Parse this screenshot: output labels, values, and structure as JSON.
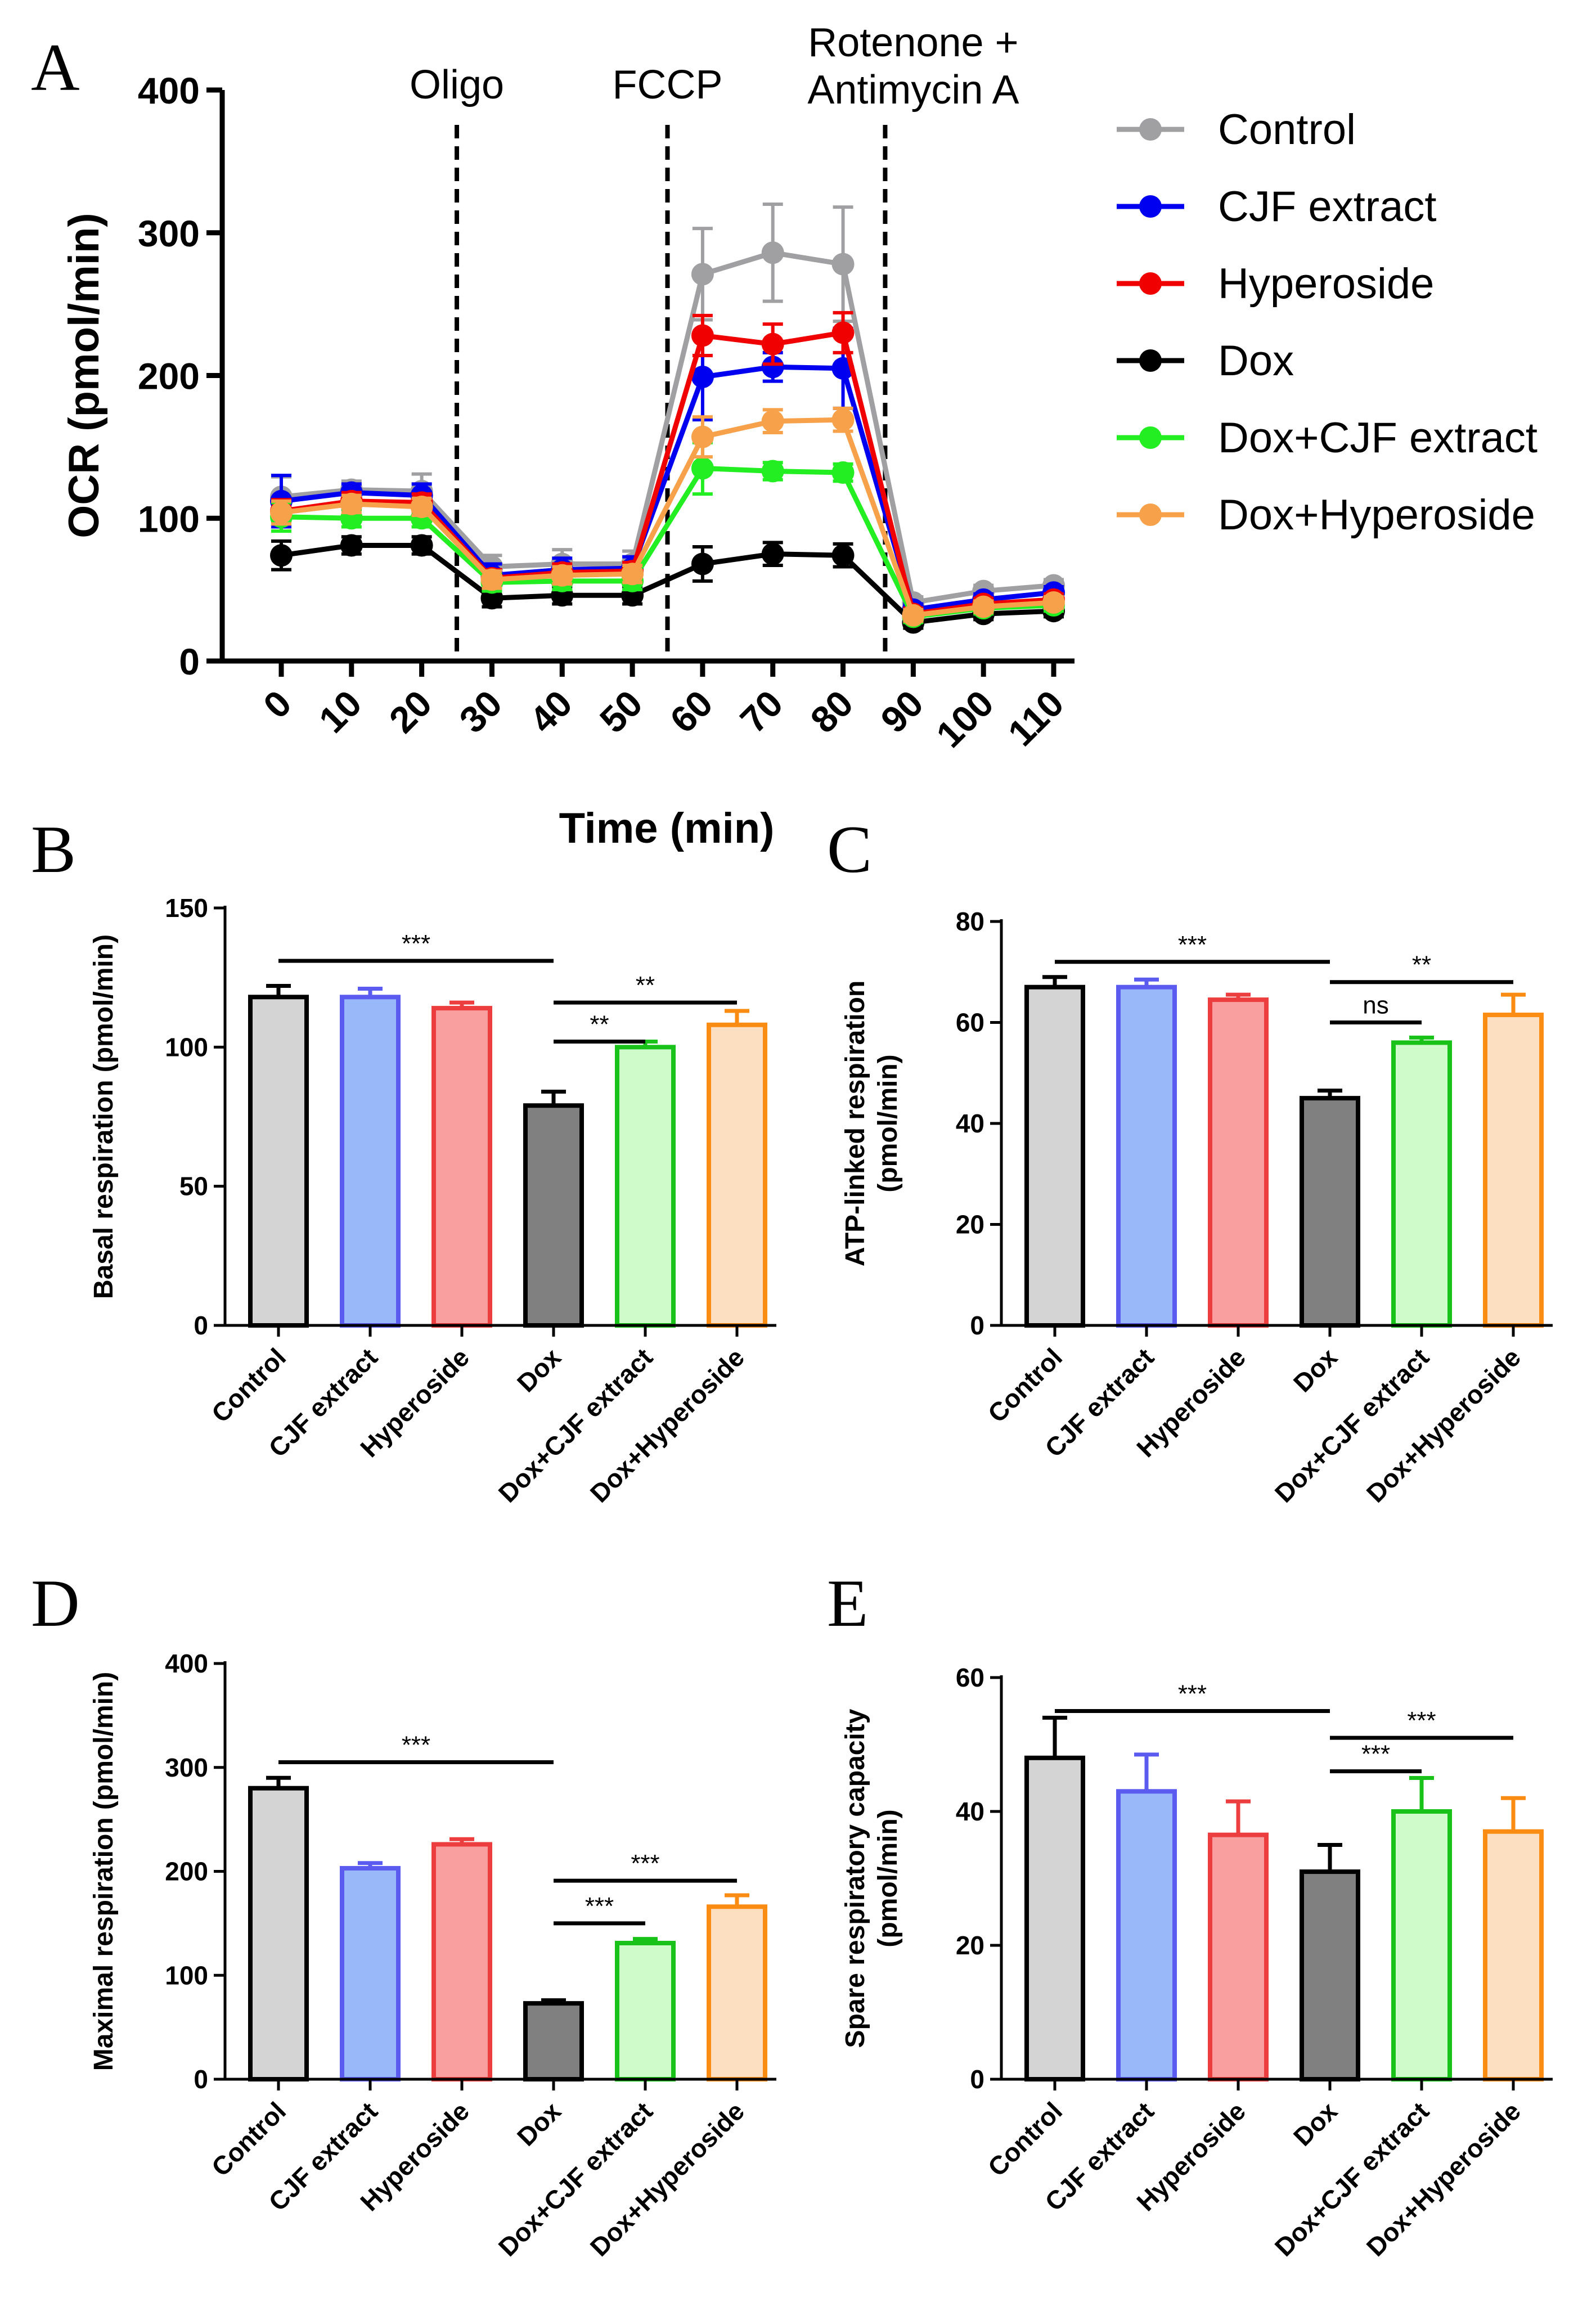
{
  "figure": {
    "panels": [
      {
        "letter": "A"
      },
      {
        "letter": "B"
      },
      {
        "letter": "C"
      },
      {
        "letter": "D"
      },
      {
        "letter": "E"
      }
    ]
  },
  "chart_data": [
    {
      "id": "A",
      "type": "line",
      "title": "",
      "xlabel": "Time (min)",
      "ylabel": "OCR (pmol/min)",
      "ylim": [
        0,
        400
      ],
      "yticks": [
        0,
        100,
        200,
        300,
        400
      ],
      "x": [
        0,
        10,
        20,
        30,
        40,
        50,
        60,
        70,
        80,
        90,
        100,
        110
      ],
      "injections": [
        {
          "label": "Oligo",
          "x": 25
        },
        {
          "label": "FCCP",
          "x": 55
        },
        {
          "label": "Rotenone +\nAntimycin A",
          "x": 86
        }
      ],
      "series": [
        {
          "name": "Control",
          "color": "#A0A0A2",
          "values": [
            115,
            120,
            119,
            66,
            68,
            68,
            271,
            286,
            278,
            41,
            49,
            53
          ],
          "errors": [
            14,
            6,
            12,
            8,
            10,
            9,
            32,
            34,
            40,
            4,
            4,
            4
          ]
        },
        {
          "name": "CJF extract",
          "color": "#0000F0",
          "values": [
            112,
            118,
            116,
            60,
            64,
            65,
            199,
            206,
            205,
            36,
            43,
            48
          ],
          "errors": [
            18,
            6,
            8,
            8,
            8,
            8,
            30,
            10,
            28,
            4,
            4,
            4
          ]
        },
        {
          "name": "Hyperoside",
          "color": "#F00000",
          "values": [
            105,
            112,
            111,
            58,
            62,
            63,
            228,
            222,
            230,
            33,
            40,
            43
          ],
          "errors": [
            8,
            6,
            6,
            6,
            6,
            6,
            14,
            14,
            14,
            4,
            4,
            4
          ]
        },
        {
          "name": "Dox",
          "color": "#000000",
          "values": [
            74,
            81,
            81,
            44,
            46,
            46,
            68,
            75,
            74,
            27,
            33,
            35
          ],
          "errors": [
            10,
            6,
            6,
            6,
            6,
            6,
            12,
            8,
            8,
            4,
            4,
            4
          ]
        },
        {
          "name": "Dox+CJF extract",
          "color": "#22EE22",
          "values": [
            101,
            100,
            100,
            55,
            56,
            56,
            135,
            133,
            132,
            31,
            37,
            39
          ],
          "errors": [
            10,
            6,
            6,
            6,
            6,
            6,
            18,
            6,
            6,
            4,
            4,
            4
          ]
        },
        {
          "name": "Dox+Hyperoside",
          "color": "#F7A24B",
          "values": [
            104,
            110,
            108,
            57,
            60,
            61,
            157,
            168,
            169,
            32,
            38,
            41
          ],
          "errors": [
            8,
            6,
            6,
            6,
            6,
            6,
            14,
            8,
            8,
            4,
            4,
            4
          ]
        }
      ],
      "legend": "right"
    },
    {
      "id": "B",
      "type": "bar",
      "ylabel": "Basal respiration (pmol/min)",
      "ylim": [
        0,
        150
      ],
      "yticks": [
        0,
        50,
        100,
        150
      ],
      "categories": [
        "Control",
        "CJF extract",
        "Hyperoside",
        "Dox",
        "Dox+CJF extract",
        "Dox+Hyperoside"
      ],
      "values": [
        118,
        118,
        114,
        79,
        100,
        108
      ],
      "errors": [
        4,
        3,
        2,
        5,
        2,
        5
      ],
      "significance": [
        {
          "from": 0,
          "to": 3,
          "label": "***",
          "y": 131
        },
        {
          "from": 3,
          "to": 5,
          "label": "**",
          "y": 116
        },
        {
          "from": 3,
          "to": 4,
          "label": "**",
          "y": 102
        }
      ]
    },
    {
      "id": "C",
      "type": "bar",
      "ylabel": "ATP-linked respiration\n(pmol/min)",
      "ylim": [
        0,
        80
      ],
      "yticks": [
        0,
        20,
        40,
        60,
        80
      ],
      "categories": [
        "Control",
        "CJF extract",
        "Hyperoside",
        "Dox",
        "Dox+CJF extract",
        "Dox+Hyperoside"
      ],
      "values": [
        67,
        67,
        64.5,
        45,
        56,
        61.5
      ],
      "errors": [
        2,
        1.5,
        1,
        1.5,
        1,
        4
      ],
      "significance": [
        {
          "from": 0,
          "to": 3,
          "label": "***",
          "y": 72
        },
        {
          "from": 3,
          "to": 5,
          "label": "**",
          "y": 68
        },
        {
          "from": 3,
          "to": 4,
          "label": "ns",
          "y": 60
        }
      ]
    },
    {
      "id": "D",
      "type": "bar",
      "ylabel": "Maximal respiration (pmol/min)",
      "ylim": [
        0,
        400
      ],
      "yticks": [
        0,
        100,
        200,
        300,
        400
      ],
      "categories": [
        "Control",
        "CJF extract",
        "Hyperoside",
        "Dox",
        "Dox+CJF extract",
        "Dox+Hyperoside"
      ],
      "values": [
        280,
        203,
        226,
        73,
        131,
        166
      ],
      "errors": [
        10,
        5,
        5,
        3,
        4,
        11
      ],
      "significance": [
        {
          "from": 0,
          "to": 3,
          "label": "***",
          "y": 305
        },
        {
          "from": 3,
          "to": 5,
          "label": "***",
          "y": 191
        },
        {
          "from": 3,
          "to": 4,
          "label": "***",
          "y": 150
        }
      ]
    },
    {
      "id": "E",
      "type": "bar",
      "ylabel": "Spare respiratory capacity\n(pmol/min)",
      "ylim": [
        0,
        60
      ],
      "yticks": [
        0,
        20,
        40,
        60
      ],
      "categories": [
        "Control",
        "CJF extract",
        "Hyperoside",
        "Dox",
        "Dox+CJF extract",
        "Dox+Hyperoside"
      ],
      "values": [
        48,
        43,
        36.5,
        31,
        40,
        37
      ],
      "errors": [
        6,
        5.5,
        5,
        4,
        5,
        5
      ],
      "significance": [
        {
          "from": 0,
          "to": 3,
          "label": "***",
          "y": 55
        },
        {
          "from": 3,
          "to": 5,
          "label": "***",
          "y": 51
        },
        {
          "from": 3,
          "to": 4,
          "label": "***",
          "y": 46
        }
      ]
    }
  ],
  "bar_style": {
    "fills": [
      "#D4D4D4",
      "#99B8FA",
      "#FA9F9F",
      "#808080",
      "#CFFBCB",
      "#FCDFC0"
    ],
    "edges": [
      "#000000",
      "#5B5BEF",
      "#EC3E3E",
      "#000000",
      "#19C219",
      "#FB8C13"
    ]
  }
}
